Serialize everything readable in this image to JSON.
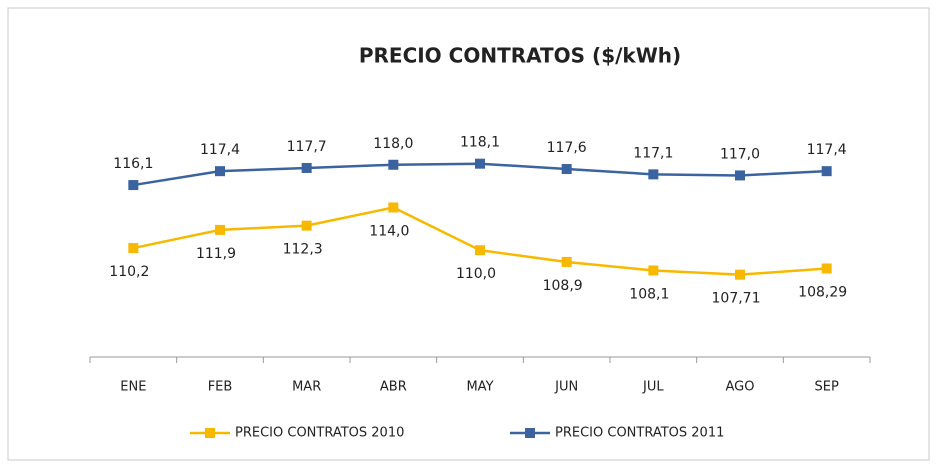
{
  "chart_data": {
    "type": "line",
    "title": "PRECIO CONTRATOS ($/kWh)",
    "categories": [
      "ENE",
      "FEB",
      "MAR",
      "ABR",
      "MAY",
      "JUN",
      "JUL",
      "AGO",
      "SEP"
    ],
    "ylim": [
      100,
      125
    ],
    "series": [
      {
        "name": "PRECIO CONTRATOS 2010",
        "color": "#f9b800",
        "values": [
          110.2,
          111.9,
          112.3,
          114.0,
          110.0,
          108.9,
          108.1,
          107.71,
          108.29
        ],
        "value_labels": [
          "110,2",
          "111,9",
          "112,3",
          "114,0",
          "110,0",
          "108,9",
          "108,1",
          "107,71",
          "108,29"
        ]
      },
      {
        "name": "PRECIO CONTRATOS 2011",
        "color": "#3b63a0",
        "values": [
          116.1,
          117.4,
          117.7,
          118.0,
          118.1,
          117.6,
          117.1,
          117.0,
          117.4
        ],
        "value_labels": [
          "116,1",
          "117,4",
          "117,7",
          "118,0",
          "118,1",
          "117,6",
          "117,1",
          "117,0",
          "117,4"
        ]
      }
    ]
  }
}
